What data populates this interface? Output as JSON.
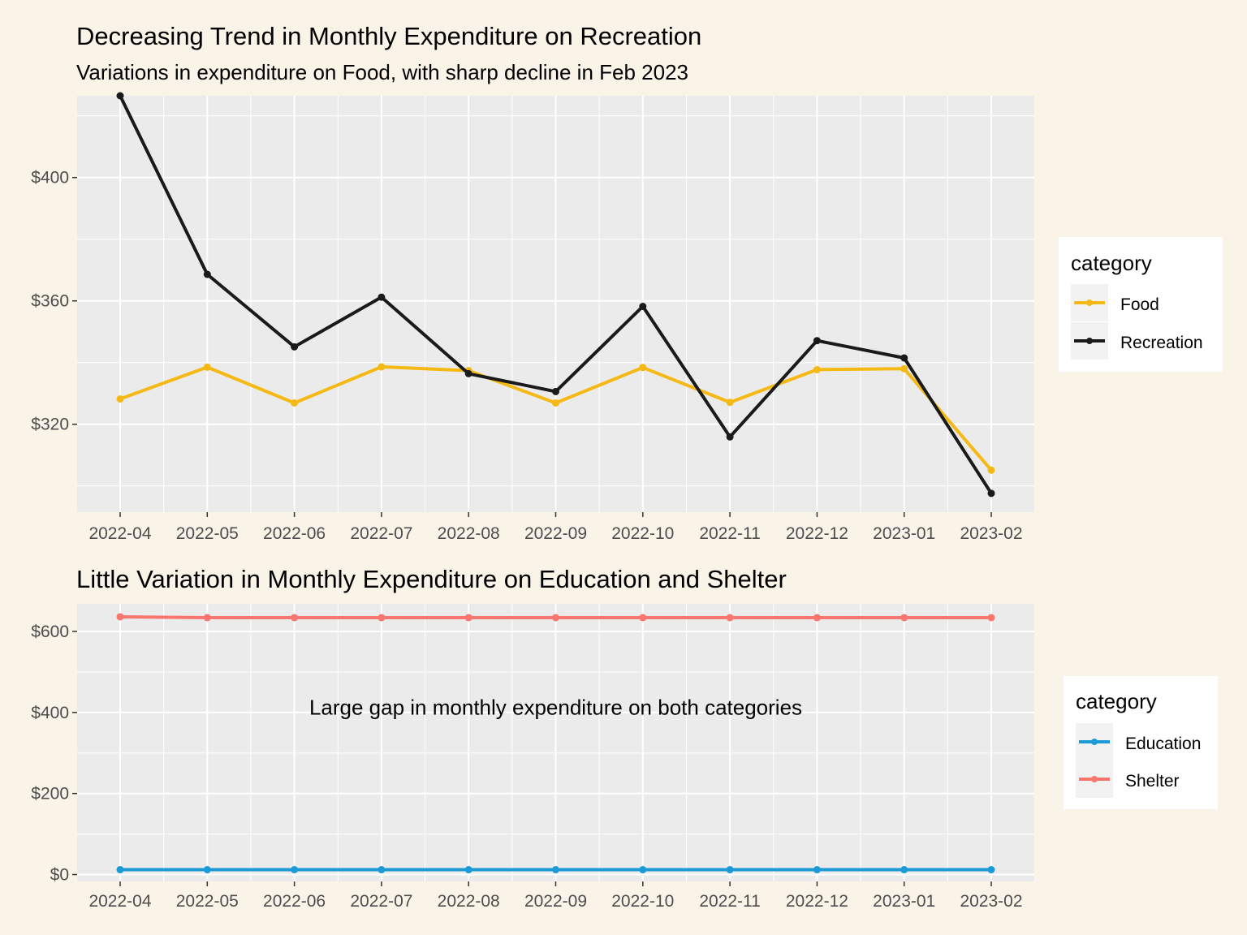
{
  "chart_data": [
    {
      "type": "line",
      "title": "Decreasing Trend in Monthly Expenditure on Recreation",
      "subtitle": "Variations in expenditure on Food, with sharp decline in Feb 2023",
      "xlabel": "",
      "ylabel": "",
      "categories": [
        "2022-04",
        "2022-05",
        "2022-06",
        "2022-07",
        "2022-08",
        "2022-09",
        "2022-10",
        "2022-11",
        "2022-12",
        "2023-01",
        "2023-02"
      ],
      "y_ticks": [
        320,
        360,
        400
      ],
      "y_tick_labels": [
        "$320",
        "$360",
        "$400"
      ],
      "ylim": [
        291.5,
        426.5
      ],
      "grid": true,
      "legend": {
        "title": "category",
        "position": "right"
      },
      "series": [
        {
          "name": "Food",
          "color": "#f5b915",
          "values": [
            328.2,
            338.5,
            326.9,
            338.6,
            337.4,
            326.9,
            338.4,
            327.1,
            337.7,
            338.0,
            305.1
          ]
        },
        {
          "name": "Recreation",
          "color": "#1a1a1a",
          "values": [
            426.5,
            368.6,
            345.1,
            361.2,
            336.4,
            330.6,
            358.2,
            315.9,
            347.1,
            341.5,
            297.6
          ]
        }
      ]
    },
    {
      "type": "line",
      "title": "Little Variation in Monthly Expenditure on Education and Shelter",
      "xlabel": "",
      "ylabel": "",
      "categories": [
        "2022-04",
        "2022-05",
        "2022-06",
        "2022-07",
        "2022-08",
        "2022-09",
        "2022-10",
        "2022-11",
        "2022-12",
        "2023-01",
        "2023-02"
      ],
      "y_ticks": [
        0,
        200,
        400,
        600
      ],
      "y_tick_labels": [
        "$0",
        "$200",
        "$400",
        "$600"
      ],
      "ylim": [
        -17,
        668
      ],
      "grid": true,
      "annotation": {
        "text": "Large gap in monthly expenditure on both categories",
        "x": "2022-09",
        "y": 395
      },
      "legend": {
        "title": "category",
        "position": "right"
      },
      "series": [
        {
          "name": "Education",
          "color": "#1b9ad6",
          "values": [
            12,
            12,
            12,
            12,
            12,
            12,
            12,
            12,
            12,
            12,
            12
          ]
        },
        {
          "name": "Shelter",
          "color": "#f8766d",
          "values": [
            636,
            634,
            634,
            634,
            634,
            634,
            634,
            634,
            634,
            634,
            634
          ]
        }
      ]
    }
  ]
}
